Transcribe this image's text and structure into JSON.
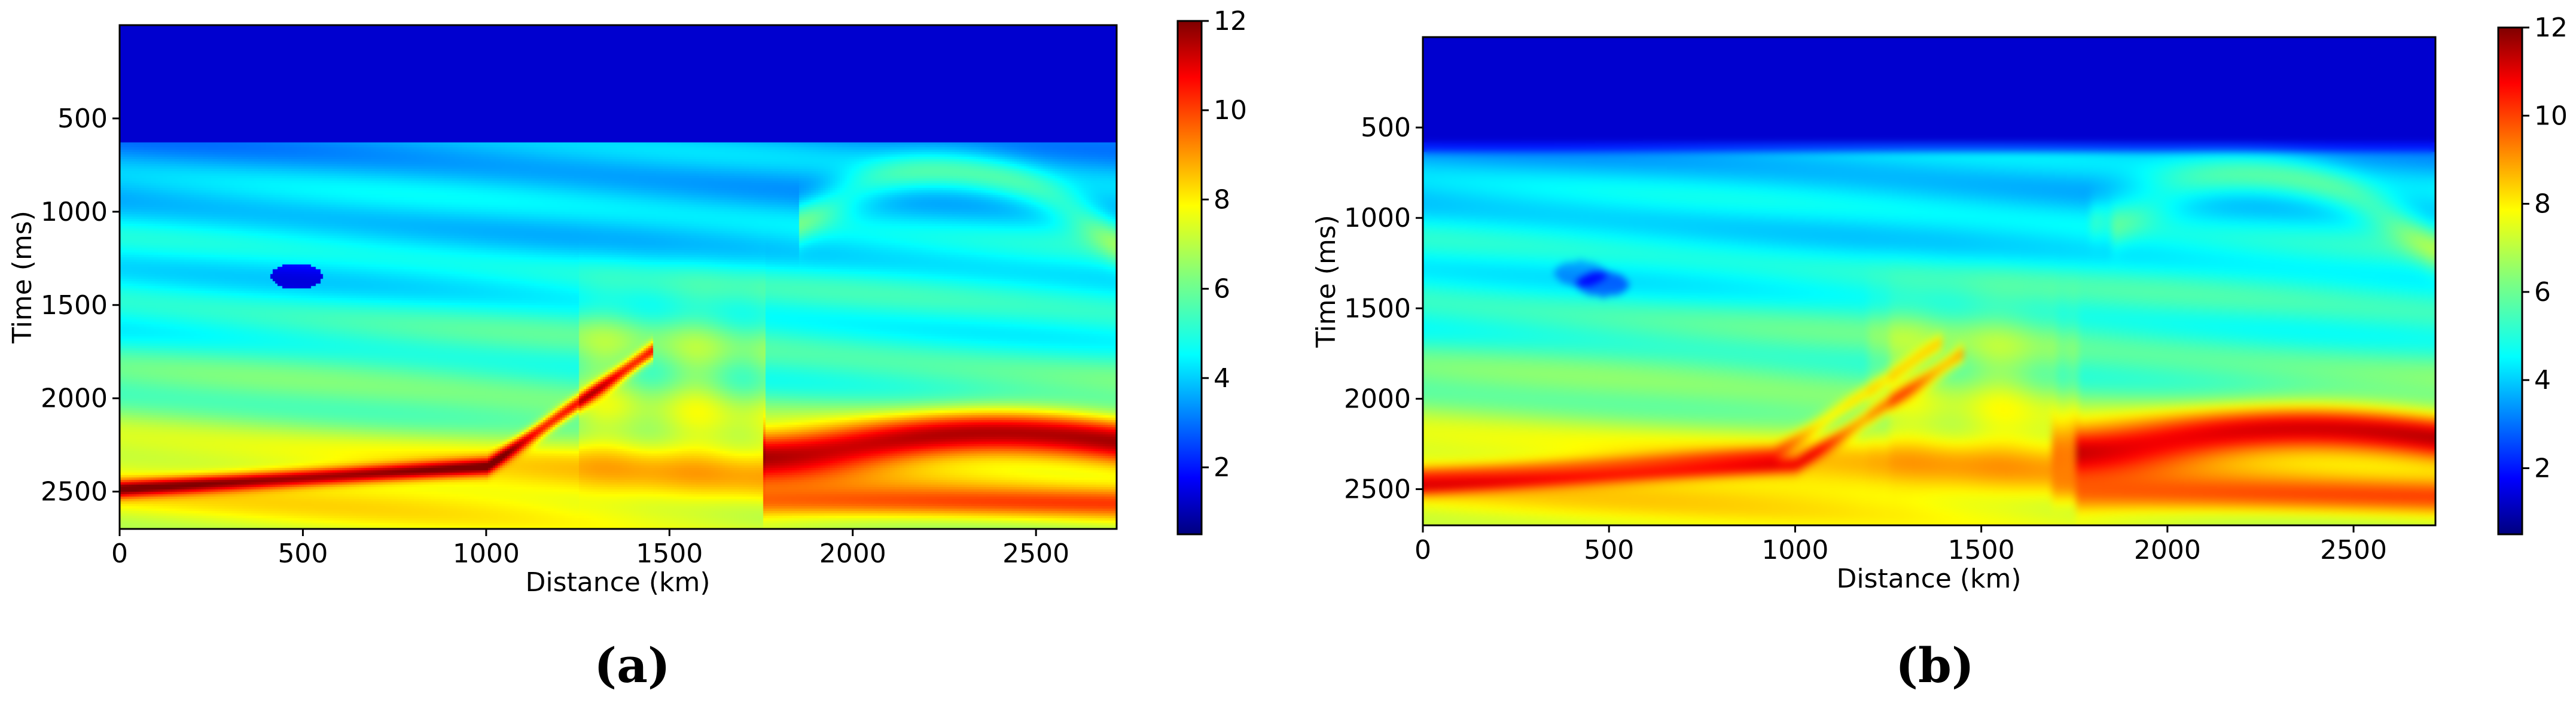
{
  "figure": {
    "colors": {
      "jet": [
        "#00007f",
        "#0000ff",
        "#007fff",
        "#00ffff",
        "#7fff7f",
        "#ffff00",
        "#ff7f00",
        "#ff0000",
        "#7f0000"
      ]
    }
  },
  "chart_data": [
    {
      "type": "heatmap",
      "panel_label": "(a)",
      "title": "",
      "xlabel": "Distance (km)",
      "ylabel": "Time (ms)",
      "xlim": [
        0,
        2720
      ],
      "ylim": [
        2700,
        0
      ],
      "x_ticks": [
        "0",
        "500",
        "1000",
        "1500",
        "2000",
        "2500"
      ],
      "x_tick_values": [
        0,
        500,
        1000,
        1500,
        2000,
        2500
      ],
      "y_ticks": [
        "500",
        "1000",
        "1500",
        "2000",
        "2500"
      ],
      "y_tick_values": [
        500,
        1000,
        1500,
        2000,
        2500
      ],
      "colorbar": {
        "min": 0.5,
        "max": 12,
        "ticks": [
          "2",
          "4",
          "6",
          "8",
          "10",
          "12"
        ],
        "tick_values": [
          2,
          4,
          6,
          8,
          10,
          12
        ],
        "colormap": "jet"
      },
      "features": {
        "water_layer": {
          "time_ms": 620,
          "value": 1.4
        },
        "background_value_below_water": 3.8,
        "low_velocity_anomaly": {
          "x": 480,
          "time_ms": 1340,
          "value": 2.2
        },
        "fault": {
          "x_top": 1650,
          "x_bottom": 1750
        },
        "dipping_red_horizon": [
          [
            0,
            2480
          ],
          [
            500,
            2470
          ],
          [
            1000,
            2360
          ],
          [
            1250,
            2150
          ],
          [
            1400,
            1850
          ]
        ],
        "high_velocity_body": {
          "x_range": [
            1750,
            2720
          ],
          "time_ms": 2250,
          "value": 10.5
        },
        "sharpness": "high"
      }
    },
    {
      "type": "heatmap",
      "panel_label": "(b)",
      "title": "",
      "xlabel": "Distance (km)",
      "ylabel": "Time (ms)",
      "xlim": [
        0,
        2720
      ],
      "ylim": [
        2700,
        0
      ],
      "x_ticks": [
        "0",
        "500",
        "1000",
        "1500",
        "2000",
        "2500"
      ],
      "x_tick_values": [
        0,
        500,
        1000,
        1500,
        2000,
        2500
      ],
      "y_ticks": [
        "500",
        "1000",
        "1500",
        "2000",
        "2500"
      ],
      "y_tick_values": [
        500,
        1000,
        1500,
        2000,
        2500
      ],
      "colorbar": {
        "min": 0.5,
        "max": 12,
        "ticks": [
          "2",
          "4",
          "6",
          "8",
          "10",
          "12"
        ],
        "tick_values": [
          2,
          4,
          6,
          8,
          10,
          12
        ],
        "colormap": "jet"
      },
      "features": {
        "water_layer": {
          "time_ms": 630,
          "value": 1.4
        },
        "background_value_below_water": 4.0,
        "low_velocity_anomaly": {
          "x": 480,
          "time_ms": 1360,
          "value": 2.6
        },
        "fault": {
          "x_top": 1660,
          "x_bottom": 1760
        },
        "dipping_red_horizon": [
          [
            0,
            2480
          ],
          [
            500,
            2470
          ],
          [
            1000,
            2360
          ],
          [
            1250,
            2150
          ],
          [
            1400,
            1850
          ]
        ],
        "high_velocity_body": {
          "x_range": [
            1750,
            2720
          ],
          "time_ms": 2250,
          "value": 10.2
        },
        "sharpness": "smooth"
      }
    }
  ]
}
